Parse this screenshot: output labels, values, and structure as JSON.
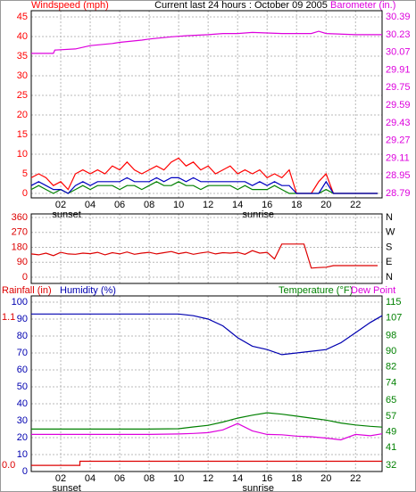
{
  "chart_data": [
    {
      "type": "line",
      "title": "Current last 24 hours : October 09 2005",
      "ylabel": "Windspeed (mph)",
      "x": [
        0,
        0.5,
        1,
        1.5,
        2,
        2.5,
        3,
        3.5,
        4,
        4.5,
        5,
        5.5,
        6,
        6.5,
        7,
        7.5,
        8,
        8.5,
        9,
        9.5,
        10,
        10.5,
        11,
        11.5,
        12,
        12.5,
        13,
        13.5,
        14,
        14.5,
        15,
        15.5,
        16,
        16.5,
        17,
        17.5,
        18,
        18.5,
        19,
        19.5,
        20,
        20.5,
        21,
        21.5,
        22,
        22.5,
        23,
        23.5
      ],
      "xlim": [
        0,
        23.8
      ],
      "xticks": [
        {
          "value": 2,
          "label": "02"
        },
        {
          "value": 4,
          "label": "04"
        },
        {
          "value": 6,
          "label": "06"
        },
        {
          "value": 8,
          "label": "08"
        },
        10,
        12,
        14,
        16,
        18,
        20,
        22
      ],
      "annotations": [
        {
          "text": "sunset",
          "x": 2.4
        },
        {
          "text": "sunrise",
          "x": 15.4
        }
      ],
      "ylim": [
        -1.14,
        46.6
      ],
      "yticks": [
        0,
        5,
        10,
        15,
        20,
        25,
        30,
        35,
        40,
        45
      ],
      "y2lim": [
        28.75,
        30.447
      ],
      "y2ticks": [
        28.79,
        28.95,
        29.11,
        29.27,
        29.43,
        29.59,
        29.75,
        29.91,
        30.07,
        30.23,
        30.39
      ],
      "grid": true,
      "series": [
        {
          "color": "#ff0000",
          "values": [
            4,
            5,
            4,
            2,
            3,
            1,
            5,
            6,
            5,
            6,
            5,
            7,
            6,
            8,
            6,
            5,
            6,
            7,
            6,
            8,
            9,
            7,
            8,
            6,
            7,
            5,
            6,
            7,
            5,
            6,
            5,
            6,
            4,
            5,
            4,
            6,
            0,
            0,
            0,
            3,
            5,
            0,
            0,
            0,
            0,
            0,
            0,
            0
          ]
        },
        {
          "color": "#008000",
          "values": [
            1,
            2,
            1,
            0,
            1,
            0,
            1,
            2,
            1,
            2,
            2,
            2,
            1,
            2,
            2,
            1,
            2,
            3,
            2,
            2,
            3,
            2,
            2,
            1,
            2,
            2,
            2,
            2,
            1,
            2,
            1,
            1,
            1,
            2,
            1,
            0,
            0,
            0,
            0,
            0,
            1,
            0,
            0,
            0,
            0,
            0,
            0,
            0
          ]
        },
        {
          "color": "#0000c0",
          "values": [
            2,
            3,
            2,
            1,
            1,
            0,
            2,
            3,
            2,
            3,
            3,
            3,
            3,
            4,
            3,
            3,
            3,
            4,
            3,
            4,
            4,
            3,
            4,
            3,
            3,
            3,
            3,
            3,
            3,
            3,
            2,
            3,
            2,
            3,
            2,
            2,
            0,
            0,
            0,
            0,
            3,
            0,
            0,
            0,
            0,
            0,
            0,
            0
          ]
        },
        {
          "name": "Barometer (in.)",
          "color": "#dd00dd",
          "axis": "y2",
          "x": [
            0,
            1.5,
            1.6,
            3,
            4,
            5.5,
            6,
            7.5,
            8,
            9.5,
            10.5,
            12,
            13,
            14,
            15,
            17,
            19,
            19.5,
            20,
            22,
            23.8
          ],
          "values": [
            30.06,
            30.06,
            30.09,
            30.1,
            30.13,
            30.15,
            30.16,
            30.18,
            30.19,
            30.21,
            30.22,
            30.23,
            30.24,
            30.24,
            30.25,
            30.24,
            30.24,
            30.26,
            30.24,
            30.23,
            30.23
          ]
        }
      ]
    },
    {
      "type": "line",
      "x": [
        0,
        0.5,
        1,
        1.5,
        2,
        2.5,
        3,
        3.5,
        4,
        4.5,
        5,
        5.5,
        6,
        6.5,
        7,
        7.5,
        8,
        8.5,
        9,
        9.5,
        10,
        10.5,
        11,
        11.5,
        12,
        12.5,
        13,
        13.5,
        14,
        14.5,
        15,
        15.5,
        16,
        16.5,
        17,
        17.5,
        18,
        18.5,
        19,
        19.5,
        20,
        20.5,
        21,
        21.5,
        22,
        22.5,
        23,
        23.5
      ],
      "xlim": [
        0,
        23.8
      ],
      "xticks": [
        2,
        4,
        6,
        8,
        10,
        12,
        14,
        16,
        18,
        20,
        22
      ],
      "xtick_labels": false,
      "ylim": [
        -37.6,
        381.5
      ],
      "yticks": [
        0,
        90,
        180,
        270,
        360
      ],
      "y2lim": [
        -37.6,
        381.5
      ],
      "y2ticks": [
        {
          "value": 360,
          "label": "N"
        },
        {
          "value": 270,
          "label": "W"
        },
        {
          "value": 180,
          "label": "S"
        },
        {
          "value": 90,
          "label": "E"
        },
        {
          "value": 0,
          "label": "N"
        }
      ],
      "grid": true,
      "series": [
        {
          "color": "#dd0000",
          "values": [
            140,
            135,
            145,
            130,
            150,
            140,
            138,
            145,
            142,
            150,
            135,
            148,
            140,
            152,
            138,
            145,
            150,
            140,
            148,
            155,
            142,
            150,
            138,
            146,
            152,
            140,
            148,
            145,
            150,
            138,
            160,
            145,
            150,
            110,
            200,
            200,
            200,
            200,
            55,
            58,
            60,
            70,
            70,
            70,
            70,
            70,
            70,
            70
          ]
        }
      ]
    },
    {
      "type": "line",
      "x": [
        0,
        2,
        4,
        6,
        8,
        10,
        11,
        12,
        13,
        14,
        15,
        16,
        17,
        18,
        19,
        20,
        21,
        22,
        23,
        23.8
      ],
      "xlim": [
        0,
        23.8
      ],
      "xticks": [
        {
          "value": 2,
          "label": "02"
        },
        {
          "value": 4,
          "label": "04"
        },
        {
          "value": 6,
          "label": "06"
        },
        {
          "value": 8,
          "label": "08"
        },
        10,
        12,
        14,
        16,
        18,
        20,
        22
      ],
      "annotations": [
        {
          "text": "sunset",
          "x": 2.4
        },
        {
          "text": "sunrise",
          "x": 15.4
        }
      ],
      "ylim": [
        0,
        103.7
      ],
      "yticks": [
        100,
        90,
        80,
        70,
        60,
        50,
        40,
        30,
        20,
        10,
        0
      ],
      "rain_lim": [
        -0.046,
        1.259
      ],
      "rain_ticks": [
        1.1,
        {
          "value": 0,
          "label": "0.0"
        }
      ],
      "y2lim": [
        28.8,
        118.2
      ],
      "y2ticks": [
        115,
        107,
        98,
        90,
        82,
        74,
        65,
        57,
        49,
        41,
        32
      ],
      "grid": true,
      "series": [
        {
          "name": "Rainfall (in)",
          "color": "#dd0000",
          "axis": "rain",
          "x": [
            0,
            3.3,
            3.3,
            23.8
          ],
          "values": [
            0,
            0,
            0.03,
            0.03
          ]
        },
        {
          "name": "Humidity (%)",
          "color": "#0000b0",
          "values": [
            93,
            93,
            93,
            93,
            93,
            93,
            92,
            90,
            86,
            79,
            74,
            72,
            69,
            70,
            71,
            72,
            76,
            82,
            88,
            92
          ]
        },
        {
          "name": "Temperature (°F)",
          "color": "#008000",
          "axis": "y2",
          "values": [
            50.4,
            50.4,
            50.4,
            50.4,
            50.4,
            50.6,
            51.5,
            52.3,
            54,
            56,
            57.5,
            58.7,
            58,
            57,
            56,
            55,
            53.5,
            52.5,
            51.8,
            51.4
          ]
        },
        {
          "name": "Dew Point",
          "color": "#dd00dd",
          "axis": "y2",
          "values": [
            47.7,
            47.7,
            47.7,
            47.7,
            47.7,
            47.9,
            48.2,
            48.6,
            50,
            53.2,
            49.5,
            47.7,
            47.5,
            46.8,
            46.5,
            45.8,
            44.9,
            47.7,
            47,
            48
          ]
        }
      ]
    }
  ]
}
